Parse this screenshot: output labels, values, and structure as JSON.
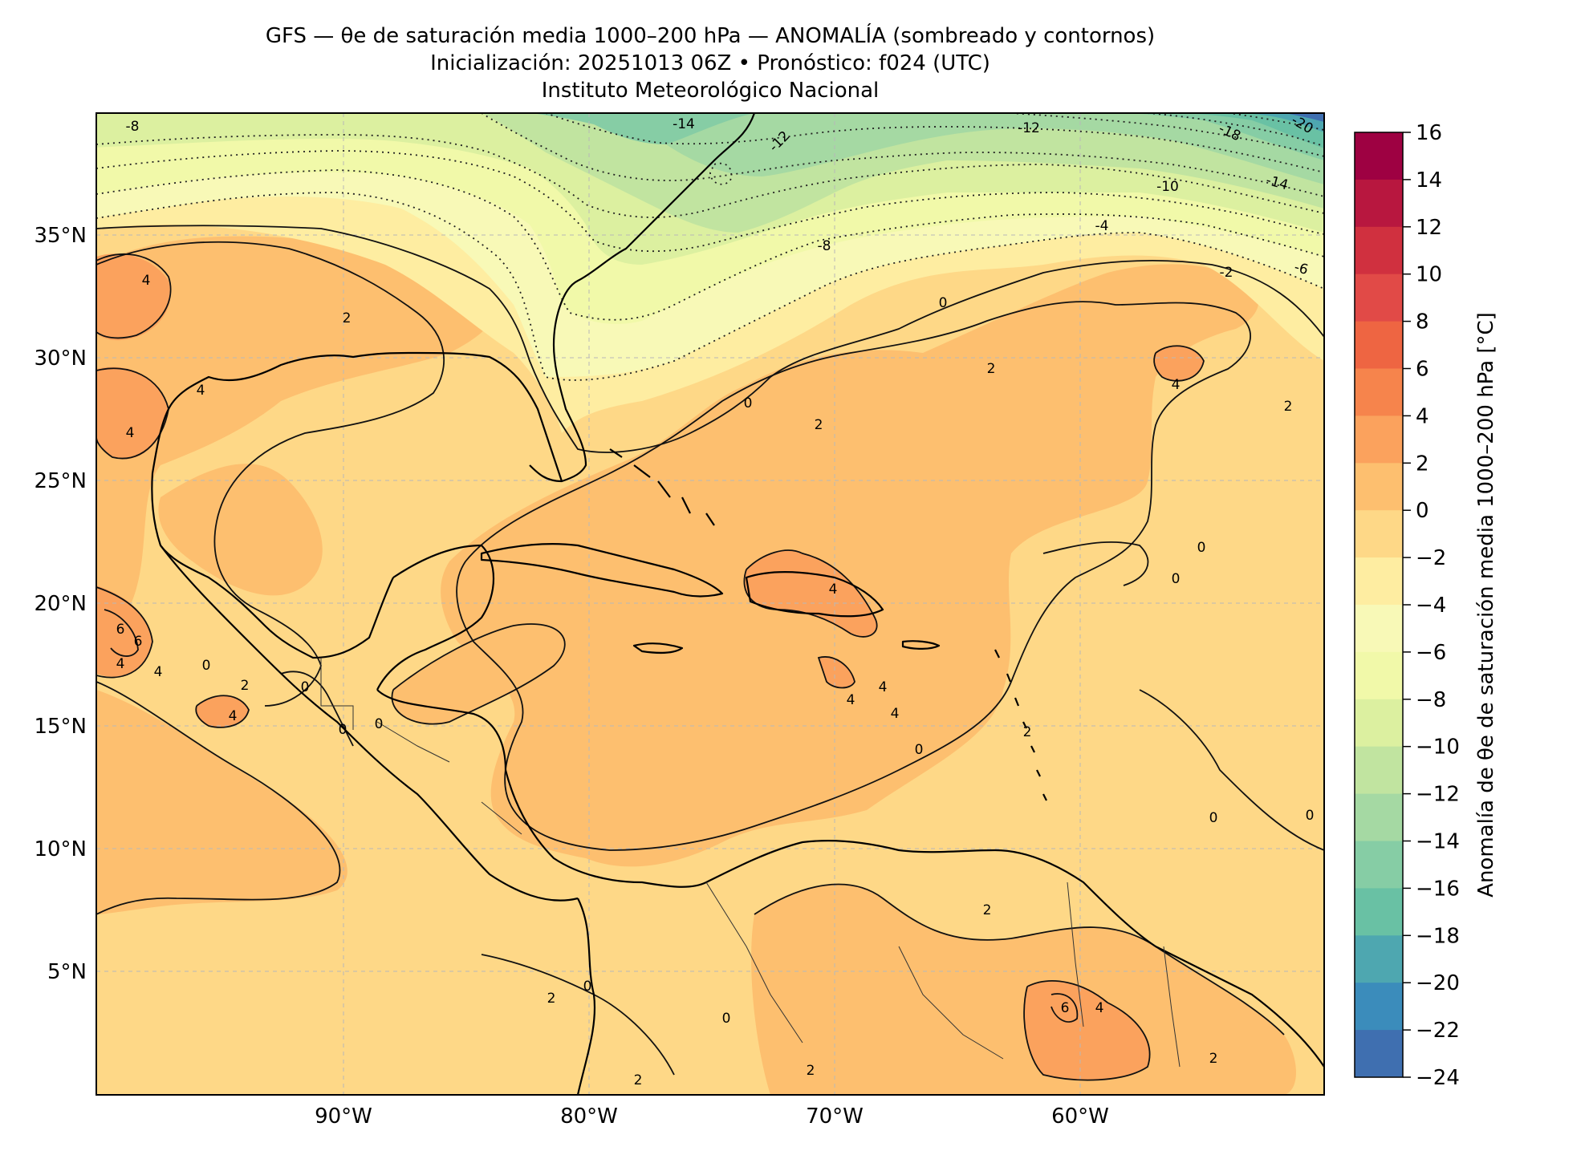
{
  "title": {
    "line1": "GFS — θe de saturación media 1000–200 hPa — ANOMALÍA (sombreado y contornos)",
    "line2": "Inicialización: 20251013 06Z   •   Pronóstico: f024 (UTC)",
    "line3": "Instituto Meteorológico Nacional"
  },
  "axes": {
    "lon_labels": [
      "90°W",
      "80°W",
      "70°W",
      "60°W"
    ],
    "lat_labels": [
      "35°N",
      "30°N",
      "25°N",
      "20°N",
      "15°N",
      "10°N",
      "5°N"
    ]
  },
  "colorbar": {
    "label": "Anomalía de θe de saturación media 1000–200 hPa [°C]",
    "ticks": [
      "16",
      "14",
      "12",
      "10",
      "8",
      "6",
      "4",
      "2",
      "0",
      "−2",
      "−4",
      "−6",
      "−8",
      "−10",
      "−12",
      "−14",
      "−16",
      "−18",
      "−20",
      "−22",
      "−24"
    ],
    "colors": [
      "#9e0142",
      "#b8173f",
      "#d0303f",
      "#e14a47",
      "#ee6542",
      "#f6844c",
      "#fba25d",
      "#fdbf6f",
      "#fed887",
      "#feeda1",
      "#f8f9b7",
      "#f1f9a9",
      "#dcf0a0",
      "#c1e4a0",
      "#a5d9a3",
      "#86cda5",
      "#69c1a4",
      "#4ea7b0",
      "#3b8cbb",
      "#3f6fb0",
      "#5a53a4"
    ]
  },
  "contour_labels": [
    "-8",
    "-14",
    "-12",
    "-12",
    "-18",
    "-20",
    "-10",
    "-14",
    "-4",
    "-8",
    "-2",
    "-6",
    "0",
    "2",
    "4",
    "2",
    "4",
    "2",
    "0",
    "2",
    "4",
    "4",
    "6",
    "6",
    "4",
    "4",
    "4",
    "0",
    "2",
    "0",
    "0",
    "0",
    "4",
    "4",
    "4",
    "4",
    "2",
    "0",
    "0",
    "0",
    "0",
    "0",
    "0",
    "2",
    "2",
    "6",
    "4",
    "2",
    "2",
    "0",
    "2"
  ]
}
